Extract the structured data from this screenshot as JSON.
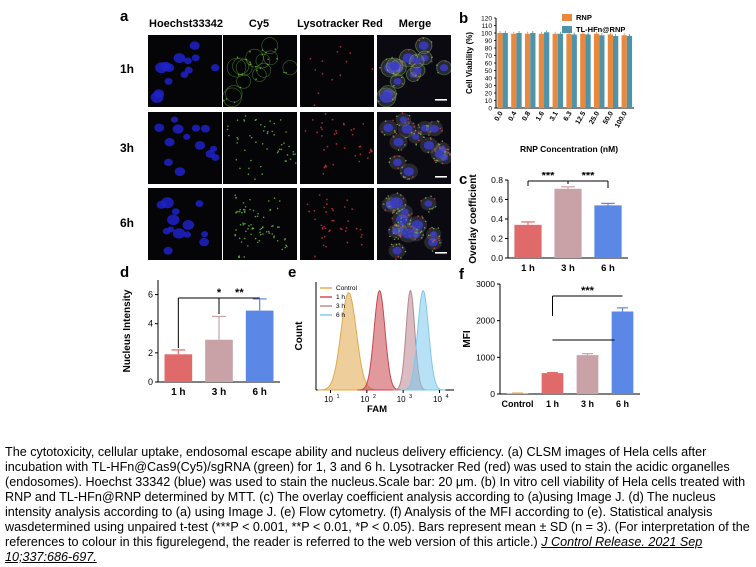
{
  "panel_letters": {
    "a": "a",
    "b": "b",
    "c": "c",
    "d": "d",
    "e": "e",
    "f": "f"
  },
  "micro": {
    "columns": [
      "Hoechst33342",
      "Cy5",
      "Lysotracker Red",
      "Merge"
    ],
    "rows": [
      "1h",
      "3h",
      "6h"
    ],
    "colors": {
      "blue": "#1e22c8",
      "green": "#5fae3a",
      "red": "#c0303a",
      "bg": "#050508"
    }
  },
  "chart_data": [
    {
      "id": "b",
      "type": "bar",
      "ylabel": "Cell Viability (%)",
      "xlabel": "RNP Concentration (nM)",
      "categories": [
        "0.0",
        "0.4",
        "0.8",
        "1.6",
        "3.1",
        "6.3",
        "12.5",
        "25.0",
        "50.0",
        "100.0"
      ],
      "ylim": [
        0,
        120
      ],
      "yticks": [
        0,
        10,
        20,
        30,
        40,
        50,
        60,
        70,
        80,
        90,
        100,
        110,
        120
      ],
      "series": [
        {
          "name": "RNP",
          "color": "#e8893e",
          "values": [
            100,
            99,
            99,
            99,
            99,
            99,
            99,
            99,
            98,
            97
          ]
        },
        {
          "name": "TL-HFn@RNP",
          "color": "#4f93a8",
          "values": [
            100,
            100,
            100,
            101,
            99,
            98,
            98,
            97,
            96,
            96
          ]
        }
      ],
      "legend": "top-right"
    },
    {
      "id": "c",
      "type": "bar",
      "ylabel": "Overlay coefficient",
      "categories": [
        "1 h",
        "3 h",
        "6 h"
      ],
      "values": [
        0.34,
        0.71,
        0.54
      ],
      "errors": [
        0.03,
        0.02,
        0.02
      ],
      "colors": [
        "#e06a6a",
        "#c9a2a8",
        "#5b87e6"
      ],
      "ylim": [
        0,
        0.8
      ],
      "yticks": [
        "0.0",
        "0.2",
        "0.4",
        "0.6",
        "0.8"
      ],
      "significance": [
        {
          "from": 0,
          "to": 1,
          "label": "***"
        },
        {
          "from": 1,
          "to": 2,
          "label": "***"
        }
      ]
    },
    {
      "id": "d",
      "type": "bar",
      "ylabel": "Nucleus Intensity",
      "categories": [
        "1 h",
        "3 h",
        "6 h"
      ],
      "values": [
        1.9,
        2.9,
        4.9
      ],
      "errors": [
        0.3,
        1.6,
        0.8
      ],
      "colors": [
        "#e06a6a",
        "#c9a2a8",
        "#5b87e6"
      ],
      "ylim": [
        0,
        7
      ],
      "yticks": [
        "0",
        "2",
        "4",
        "6"
      ],
      "significance": [
        {
          "from": 0,
          "to": 2,
          "label": "*"
        },
        {
          "from": 1,
          "to": 2,
          "label": "**"
        }
      ]
    },
    {
      "id": "e",
      "type": "area",
      "ylabel": "Count",
      "xlabel": "FAM",
      "xscale": "log",
      "xticks": [
        "10",
        "10",
        "10",
        "10"
      ],
      "xtick_exponents": [
        "1",
        "2",
        "3",
        "4"
      ],
      "series": [
        {
          "name": "Control",
          "color": "#e0a84a",
          "center": 1.5,
          "width": 0.21,
          "height": 0.9
        },
        {
          "name": "1 h",
          "color": "#c9454f",
          "center": 2.35,
          "width": 0.15,
          "height": 0.92
        },
        {
          "name": "3 h",
          "color": "#b9868f",
          "center": 3.2,
          "width": 0.12,
          "height": 0.92
        },
        {
          "name": "6 h",
          "color": "#7ec9ee",
          "center": 3.55,
          "width": 0.15,
          "height": 0.92
        }
      ],
      "legend": "top-left"
    },
    {
      "id": "f",
      "type": "bar",
      "ylabel": "MFI",
      "categories": [
        "Control",
        "1 h",
        "3 h",
        "6 h"
      ],
      "values": [
        20,
        570,
        1060,
        2250
      ],
      "errors": [
        5,
        15,
        40,
        100
      ],
      "colors": [
        "#e0a84a",
        "#e06a6a",
        "#c9a2a8",
        "#5b87e6"
      ],
      "ylim": [
        0,
        3000
      ],
      "yticks": [
        "0",
        "1000",
        "2000",
        "3000"
      ],
      "significance": [
        {
          "from": 1,
          "to": 3,
          "label": "***"
        }
      ]
    }
  ],
  "caption": {
    "text": "The cytotoxicity, cellular uptake, endosomal escape ability and nucleus delivery efficiency. (a) CLSM images of Hela cells after incubation with TL-HFn@Cas9(Cy5)/sgRNA (green) for 1, 3 and 6 h. Lysotracker Red (red) was used to stain the acidic organelles (endosomes). Hoechst 33342 (blue) was used to stain the nucleus.Scale bar: 20 μm. (b) In vitro cell viability of Hela cells treated with RNP and TL-HFn@RNP determined by MTT. (c) The overlay coefficient analysis according to (a)using Image J. (d) The nucleus intensity analysis according to (a) using Image J. (e) Flow cytometry. (f) Analysis of the MFI according to (e). Statistical analysis wasdetermined using unpaired t-test (***P < 0.001, **P < 0.01, *P < 0.05). Bars represent mean ± SD (n = 3). (For interpretation of the references to colour in this figurelegend, the reader is referred to the web version of this article.) ",
    "citation": "J Control Release. 2021 Sep 10;337:686-697."
  }
}
